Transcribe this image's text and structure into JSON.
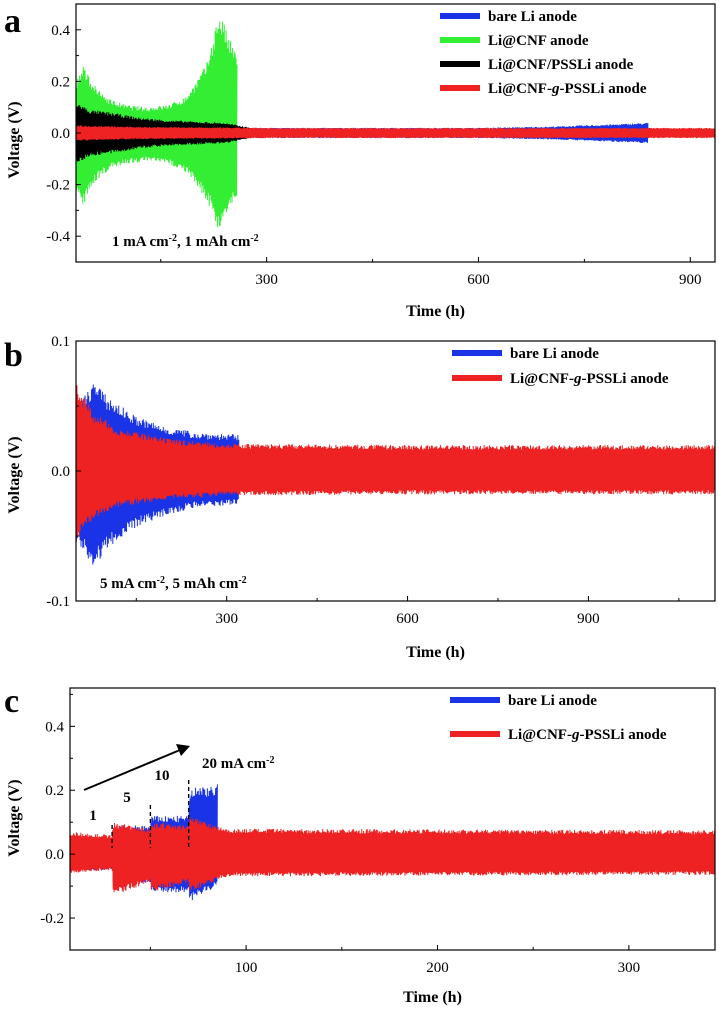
{
  "chart_data": [
    {
      "panel": "a",
      "type": "line",
      "xlabel": "Time (h)",
      "ylabel": "Voltage (V)",
      "xlim": [
        30,
        935
      ],
      "ylim": [
        -0.5,
        0.5
      ],
      "xticks": [
        300,
        600,
        900
      ],
      "xtick_labels": [
        "300",
        "600",
        "900"
      ],
      "yticks": [
        -0.4,
        -0.2,
        0.0,
        0.2,
        0.4
      ],
      "ytick_labels": [
        "-0.4",
        "-0.2",
        "0.0",
        "0.2",
        "0.4"
      ],
      "legend_position": "top-right",
      "annotation": {
        "text": "1 mA cm",
        "sup1": "-2",
        "mid": ", 1 mAh cm",
        "sup2": "-2"
      },
      "series": [
        {
          "name": "bare Li anode",
          "color": "#1a33e6",
          "x": [
            30,
            100,
            200,
            300,
            400,
            500,
            600,
            700,
            800,
            840
          ],
          "upper": [
            0.018,
            0.018,
            0.018,
            0.02,
            0.02,
            0.02,
            0.02,
            0.025,
            0.035,
            0.04
          ],
          "lower": [
            -0.018,
            -0.018,
            -0.018,
            -0.02,
            -0.02,
            -0.02,
            -0.02,
            -0.025,
            -0.035,
            -0.04
          ]
        },
        {
          "name": "Li@CNF anode",
          "color": "#33ee33",
          "x": [
            30,
            40,
            60,
            80,
            100,
            130,
            160,
            185,
            200,
            215,
            225,
            232,
            238,
            245,
            252,
            258
          ],
          "upper": [
            0.2,
            0.26,
            0.17,
            0.13,
            0.11,
            0.1,
            0.11,
            0.14,
            0.2,
            0.27,
            0.38,
            0.47,
            0.44,
            0.38,
            0.34,
            0.3
          ],
          "lower": [
            -0.22,
            -0.28,
            -0.18,
            -0.14,
            -0.12,
            -0.11,
            -0.12,
            -0.15,
            -0.2,
            -0.26,
            -0.33,
            -0.39,
            -0.35,
            -0.3,
            -0.27,
            -0.26
          ]
        },
        {
          "name": "Li@CNF/PSSLi anode",
          "color": "#000000",
          "x": [
            30,
            50,
            80,
            120,
            160,
            200,
            240,
            260,
            280
          ],
          "upper": [
            0.12,
            0.09,
            0.08,
            0.06,
            0.05,
            0.045,
            0.04,
            0.03,
            0.02
          ],
          "lower": [
            -0.12,
            -0.09,
            -0.08,
            -0.06,
            -0.05,
            -0.045,
            -0.04,
            -0.03,
            -0.02
          ]
        },
        {
          "name": "Li@CNF-g-PSSLi anode",
          "color": "#ee2222",
          "x": [
            30,
            100,
            300,
            600,
            935
          ],
          "upper": [
            0.03,
            0.025,
            0.02,
            0.02,
            0.02
          ],
          "lower": [
            -0.03,
            -0.025,
            -0.02,
            -0.02,
            -0.02
          ]
        }
      ]
    },
    {
      "panel": "b",
      "type": "line",
      "xlabel": "Time (h)",
      "ylabel": "Voltage (V)",
      "xlim": [
        50,
        1110
      ],
      "ylim": [
        -0.1,
        0.1
      ],
      "xticks": [
        300,
        600,
        900
      ],
      "xtick_labels": [
        "300",
        "600",
        "900"
      ],
      "yticks": [
        -0.1,
        0.0,
        0.1
      ],
      "ytick_labels": [
        "-0.1",
        "0.0",
        "0.1"
      ],
      "legend_position": "top-right",
      "annotation": {
        "text": "5 mA cm",
        "sup1": "-2",
        "mid": ", 5 mAh cm",
        "sup2": "-2"
      },
      "series": [
        {
          "name": "bare Li anode",
          "color": "#1a33e6",
          "x": [
            50,
            60,
            80,
            100,
            150,
            200,
            250,
            320
          ],
          "upper": [
            0.04,
            0.055,
            0.07,
            0.058,
            0.042,
            0.034,
            0.03,
            0.028
          ],
          "lower": [
            -0.05,
            -0.06,
            -0.075,
            -0.06,
            -0.043,
            -0.034,
            -0.028,
            -0.026
          ]
        },
        {
          "name": "Li@CNF-g-PSSLi anode",
          "color": "#ee2222",
          "x": [
            50,
            60,
            80,
            120,
            200,
            300,
            600,
            1110
          ],
          "upper": [
            0.068,
            0.06,
            0.045,
            0.033,
            0.025,
            0.021,
            0.02,
            0.02
          ],
          "lower": [
            -0.055,
            -0.048,
            -0.036,
            -0.028,
            -0.022,
            -0.019,
            -0.018,
            -0.018
          ]
        }
      ]
    },
    {
      "panel": "c",
      "type": "line",
      "xlabel": "Time (h)",
      "ylabel": "Voltage (V)",
      "xlim": [
        8,
        345
      ],
      "ylim": [
        -0.3,
        0.52
      ],
      "xticks": [
        100,
        200,
        300
      ],
      "xtick_labels": [
        "100",
        "200",
        "300"
      ],
      "yticks": [
        -0.2,
        0.0,
        0.2,
        0.4
      ],
      "ytick_labels": [
        "-0.2",
        "0.0",
        "0.2",
        "0.4"
      ],
      "legend_position": "top-right",
      "rate_labels": [
        "1",
        "5",
        "10",
        "20 mA cm"
      ],
      "rate_sup": "-2",
      "rate_steps_x": [
        30,
        50,
        70
      ],
      "series": [
        {
          "name": "bare Li anode",
          "color": "#1a33e6",
          "x": [
            8,
            30,
            30.5,
            50,
            50.5,
            70,
            70.5,
            85
          ],
          "upper": [
            0.05,
            0.05,
            0.09,
            0.09,
            0.12,
            0.12,
            0.21,
            0.22
          ],
          "lower": [
            -0.05,
            -0.05,
            -0.09,
            -0.09,
            -0.12,
            -0.12,
            -0.15,
            -0.1
          ]
        },
        {
          "name": "Li@CNF-g-PSSLi anode",
          "color": "#ee2222",
          "x": [
            8,
            30,
            30.5,
            50,
            50.5,
            70,
            70.5,
            90,
            345
          ],
          "upper": [
            0.07,
            0.06,
            0.1,
            0.08,
            0.1,
            0.09,
            0.12,
            0.08,
            0.075
          ],
          "lower": [
            -0.06,
            -0.05,
            -0.13,
            -0.09,
            -0.12,
            -0.09,
            -0.12,
            -0.07,
            -0.065
          ]
        }
      ]
    }
  ]
}
